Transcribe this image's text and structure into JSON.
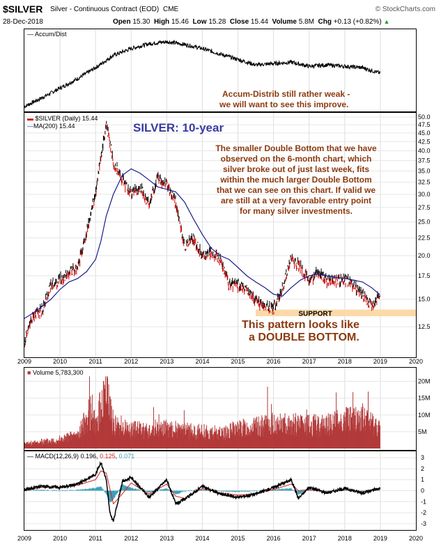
{
  "header": {
    "symbol": "$SILVER",
    "name": "Silver - Continuous Contract (EOD)",
    "exchange": "CME",
    "source": "© StockCharts.com",
    "date": "28-Dec-2018",
    "open_label": "Open",
    "open": "15.30",
    "high_label": "High",
    "high": "15.46",
    "low_label": "Low",
    "low": "15.28",
    "close_label": "Close",
    "close": "15.44",
    "volume_label": "Volume",
    "volume": "5.8M",
    "chg_label": "Chg",
    "chg": "+0.13 (+0.82%)"
  },
  "accum": {
    "legend": "Accum/Dist",
    "note1": "Accum-Distrib still rather weak -",
    "note2": "we will want to see this improve."
  },
  "price": {
    "legend_price": "$SILVER (Daily) 15.44",
    "legend_ma": "MA(200) 15.44",
    "title": "SILVER: 10-year",
    "note_lines": [
      "The smaller Double Bottom that we have",
      "observed on the 6-month chart, which",
      "silver broke out of just last week, fits",
      "within the much larger Double Bottom",
      "that we can see on this chart. If valid we",
      "are still at a very favorable entry point",
      "for many silver investments."
    ],
    "support_label": "SUPPORT",
    "pattern1": "This pattern looks like",
    "pattern2": "a DOUBLE BOTTOM."
  },
  "volume": {
    "legend_label": "Volume",
    "legend_value": "5,783,300"
  },
  "macd": {
    "legend_label": "MACD(12,26,9)",
    "v1": "0.196",
    "v2": "0.125",
    "v3": "0.071"
  },
  "colors": {
    "price_down": "#cc0000",
    "price_up": "#000000",
    "ma": "#1c1c8c",
    "volume": "#b33a3a",
    "support": "#fbd9a9",
    "note": "#8b3a0f",
    "title": "#3a3aa0",
    "macd_signal": "#d02020",
    "macd_hist": "#40a0b8"
  },
  "chart_data": [
    {
      "type": "line",
      "title": "Accum/Dist",
      "x": [
        2009.0,
        2009.5,
        2010.0,
        2010.5,
        2011.0,
        2011.5,
        2012.0,
        2012.5,
        2013.0,
        2013.5,
        2014.0,
        2014.5,
        2015.0,
        2015.5,
        2016.0,
        2016.5,
        2017.0,
        2017.5,
        2018.0,
        2018.5,
        2018.99
      ],
      "series": [
        {
          "values": [
            1,
            14,
            28,
            42,
            58,
            76,
            86,
            93,
            96,
            92,
            86,
            78,
            70,
            62,
            64,
            66,
            60,
            62,
            60,
            58,
            50
          ]
        }
      ]
    },
    {
      "type": "line",
      "title": "SILVER: 10-year",
      "x": [
        2009.0,
        2009.25,
        2009.5,
        2009.75,
        2010.0,
        2010.25,
        2010.5,
        2010.75,
        2011.0,
        2011.15,
        2011.3,
        2011.5,
        2011.75,
        2012.0,
        2012.25,
        2012.5,
        2012.75,
        2013.0,
        2013.25,
        2013.5,
        2013.75,
        2014.0,
        2014.25,
        2014.5,
        2014.75,
        2015.0,
        2015.25,
        2015.5,
        2015.75,
        2016.0,
        2016.25,
        2016.5,
        2016.75,
        2017.0,
        2017.25,
        2017.5,
        2017.75,
        2018.0,
        2018.25,
        2018.5,
        2018.75,
        2018.99
      ],
      "series": [
        {
          "name": "$SILVER (Daily)",
          "values": [
            11.3,
            13.5,
            14.0,
            16.5,
            17.0,
            18.0,
            18.3,
            23.5,
            30.0,
            38.0,
            47.5,
            37.0,
            33.0,
            30.0,
            31.5,
            28.0,
            33.5,
            32.0,
            28.5,
            21.0,
            22.5,
            20.0,
            20.5,
            19.5,
            16.5,
            16.5,
            16.0,
            14.9,
            14.3,
            14.1,
            16.0,
            19.8,
            18.5,
            16.8,
            18.0,
            16.9,
            17.0,
            17.1,
            16.5,
            15.5,
            14.3,
            15.44
          ]
        },
        {
          "name": "MA(200)",
          "values": [
            13.2,
            13.7,
            14.3,
            15.0,
            16.0,
            16.8,
            17.2,
            18.0,
            19.5,
            22.0,
            26.0,
            30.0,
            34.0,
            35.5,
            34.5,
            33.0,
            31.5,
            31.0,
            30.5,
            28.5,
            25.5,
            23.0,
            21.0,
            20.0,
            19.5,
            18.5,
            17.5,
            16.8,
            16.2,
            15.5,
            15.3,
            16.2,
            17.0,
            17.5,
            17.7,
            17.5,
            17.3,
            17.2,
            17.0,
            16.8,
            16.2,
            15.44
          ]
        }
      ],
      "ylim": [
        10.5,
        50.0
      ],
      "y_scale": "log",
      "y_ticks": [
        12.5,
        15.0,
        17.5,
        20.0,
        22.5,
        25.0,
        27.5,
        30.0,
        32.5,
        35.0,
        37.5,
        40.0,
        42.5,
        45.0,
        47.5,
        50.0
      ],
      "x_ticks": [
        2009,
        2010,
        2011,
        2012,
        2013,
        2014,
        2015,
        2016,
        2017,
        2018,
        2019,
        2020
      ],
      "support_range": [
        14.0,
        13.4
      ],
      "grid": true
    },
    {
      "type": "bar",
      "title": "Volume",
      "x": [
        2009.0,
        2009.5,
        2010.0,
        2010.5,
        2010.9,
        2011.0,
        2011.3,
        2011.5,
        2012.0,
        2012.5,
        2013.0,
        2013.5,
        2014.0,
        2014.5,
        2015.0,
        2015.5,
        2016.0,
        2016.5,
        2017.0,
        2017.5,
        2018.0,
        2018.5,
        2018.99
      ],
      "series": [
        {
          "values": [
            1.5,
            2.2,
            3.0,
            4.5,
            13.0,
            7.0,
            22.0,
            8.0,
            6.5,
            5.5,
            6.5,
            5.8,
            5.5,
            5.0,
            6.5,
            7.0,
            8.0,
            8.0,
            7.5,
            8.0,
            9.5,
            10.0,
            7.0
          ]
        }
      ],
      "unit": "M",
      "y_ticks": [
        5,
        10,
        15,
        20
      ],
      "y_tick_labels": [
        "5M",
        "10M",
        "15M",
        "20M"
      ]
    },
    {
      "type": "line",
      "title": "MACD(12,26,9)",
      "x": [
        2009.0,
        2009.5,
        2010.0,
        2010.5,
        2011.0,
        2011.15,
        2011.3,
        2011.4,
        2011.5,
        2011.75,
        2012.0,
        2012.5,
        2013.0,
        2013.25,
        2013.5,
        2014.0,
        2014.5,
        2015.0,
        2015.5,
        2016.0,
        2016.5,
        2016.7,
        2017.0,
        2017.5,
        2018.0,
        2018.5,
        2018.99
      ],
      "series": [
        {
          "name": "MACD(12,26,9)",
          "values": [
            0.1,
            0.4,
            0.3,
            0.6,
            1.5,
            2.6,
            1.0,
            -2.0,
            -2.8,
            0.8,
            1.2,
            -0.6,
            1.0,
            -1.2,
            -0.8,
            0.4,
            -0.3,
            -0.6,
            -0.3,
            0.3,
            1.0,
            -0.7,
            0.3,
            -0.2,
            0.2,
            -0.2,
            0.196
          ]
        },
        {
          "name": "signal",
          "values": [
            0.0,
            0.3,
            0.3,
            0.5,
            1.0,
            1.8,
            1.6,
            0.2,
            -1.2,
            -0.3,
            0.7,
            -0.3,
            0.6,
            -0.5,
            -0.7,
            0.2,
            -0.2,
            -0.4,
            -0.3,
            0.1,
            0.6,
            0.0,
            0.1,
            -0.1,
            0.1,
            -0.1,
            0.125
          ]
        }
      ],
      "ylim": [
        -3.2,
        3.2
      ],
      "y_ticks": [
        -3,
        -2,
        -1,
        0,
        1,
        2,
        3
      ],
      "x_ticks": [
        2009,
        2010,
        2011,
        2012,
        2013,
        2014,
        2015,
        2016,
        2017,
        2018,
        2019,
        2020
      ]
    }
  ]
}
